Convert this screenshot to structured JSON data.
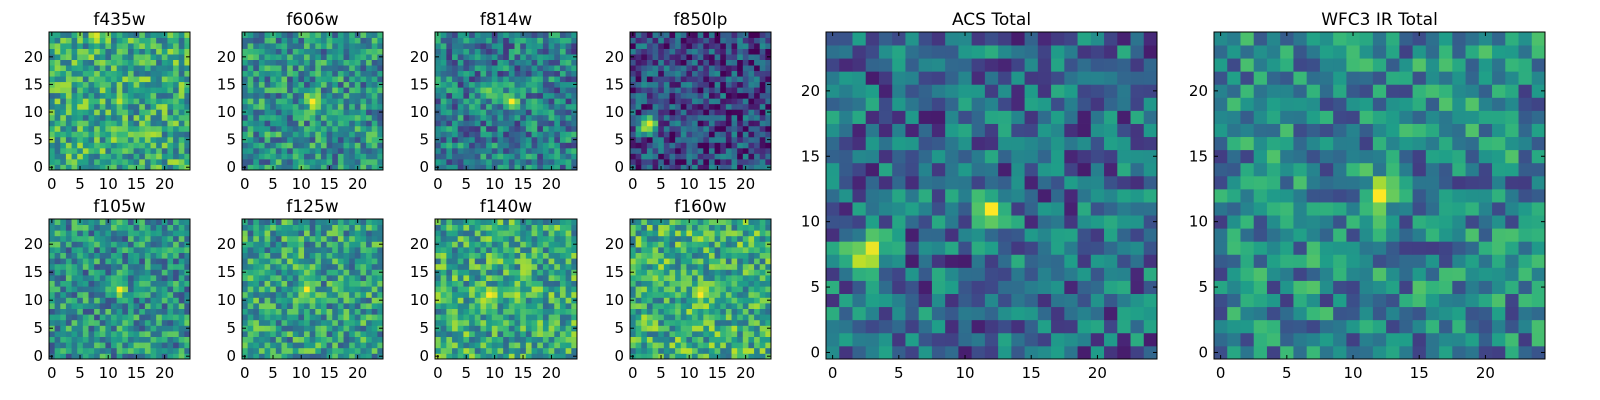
{
  "figure": {
    "colormap": "viridis",
    "colors": {
      "low": "#440154",
      "mid": "#21918c",
      "high": "#fde725",
      "axis": "#000000"
    }
  },
  "chart_data": [
    {
      "type": "heatmap",
      "title": "f435w",
      "grid_size": 25,
      "xlim": [
        -0.5,
        24.5
      ],
      "ylim": [
        -0.5,
        24.5
      ],
      "xticks": [
        0,
        5,
        10,
        15,
        20
      ],
      "yticks": [
        0,
        5,
        10,
        15,
        20
      ],
      "xlabel": "",
      "ylabel": "",
      "bright_spots": [
        {
          "x": 12,
          "y": 12,
          "level": 0.9
        },
        {
          "x": 8,
          "y": 24,
          "level": 0.95
        }
      ],
      "background_level": 0.6
    },
    {
      "type": "heatmap",
      "title": "f606w",
      "grid_size": 25,
      "xlim": [
        -0.5,
        24.5
      ],
      "ylim": [
        -0.5,
        24.5
      ],
      "xticks": [
        0,
        5,
        10,
        15,
        20
      ],
      "yticks": [
        0,
        5,
        10,
        15,
        20
      ],
      "xlabel": "",
      "ylabel": "",
      "bright_spots": [
        {
          "x": 12,
          "y": 12,
          "level": 1.0
        }
      ],
      "background_level": 0.5
    },
    {
      "type": "heatmap",
      "title": "f814w",
      "grid_size": 25,
      "xlim": [
        -0.5,
        24.5
      ],
      "ylim": [
        -0.5,
        24.5
      ],
      "xticks": [
        0,
        5,
        10,
        15,
        20
      ],
      "yticks": [
        0,
        5,
        10,
        15,
        20
      ],
      "xlabel": "",
      "ylabel": "",
      "bright_spots": [
        {
          "x": 13,
          "y": 12,
          "level": 1.0
        },
        {
          "x": 9,
          "y": 14,
          "level": 0.8
        }
      ],
      "background_level": 0.42
    },
    {
      "type": "heatmap",
      "title": "f850lp",
      "grid_size": 25,
      "xlim": [
        -0.5,
        24.5
      ],
      "ylim": [
        -0.5,
        24.5
      ],
      "xticks": [
        0,
        5,
        10,
        15,
        20
      ],
      "yticks": [
        0,
        5,
        10,
        15,
        20
      ],
      "xlabel": "",
      "ylabel": "",
      "bright_spots": [
        {
          "x": 3,
          "y": 8,
          "level": 1.0
        },
        {
          "x": 2,
          "y": 7,
          "level": 0.85
        }
      ],
      "background_level": 0.22
    },
    {
      "type": "heatmap",
      "title": "f105w",
      "grid_size": 25,
      "xlim": [
        -0.5,
        24.5
      ],
      "ylim": [
        -0.5,
        24.5
      ],
      "xticks": [
        0,
        5,
        10,
        15,
        20
      ],
      "yticks": [
        0,
        5,
        10,
        15,
        20
      ],
      "xlabel": "",
      "ylabel": "",
      "bright_spots": [
        {
          "x": 12,
          "y": 12,
          "level": 1.0
        }
      ],
      "background_level": 0.5
    },
    {
      "type": "heatmap",
      "title": "f125w",
      "grid_size": 25,
      "xlim": [
        -0.5,
        24.5
      ],
      "ylim": [
        -0.5,
        24.5
      ],
      "xticks": [
        0,
        5,
        10,
        15,
        20
      ],
      "yticks": [
        0,
        5,
        10,
        15,
        20
      ],
      "xlabel": "",
      "ylabel": "",
      "bright_spots": [
        {
          "x": 11,
          "y": 12,
          "level": 1.0
        },
        {
          "x": 11,
          "y": 15,
          "level": 0.8
        }
      ],
      "background_level": 0.55
    },
    {
      "type": "heatmap",
      "title": "f140w",
      "grid_size": 25,
      "xlim": [
        -0.5,
        24.5
      ],
      "ylim": [
        -0.5,
        24.5
      ],
      "xticks": [
        0,
        5,
        10,
        15,
        20
      ],
      "yticks": [
        0,
        5,
        10,
        15,
        20
      ],
      "xlabel": "",
      "ylabel": "",
      "bright_spots": [
        {
          "x": 9,
          "y": 11,
          "level": 1.0
        },
        {
          "x": 14,
          "y": 11,
          "level": 0.9
        },
        {
          "x": 3,
          "y": 6,
          "level": 0.85
        }
      ],
      "background_level": 0.6
    },
    {
      "type": "heatmap",
      "title": "f160w",
      "grid_size": 25,
      "xlim": [
        -0.5,
        24.5
      ],
      "ylim": [
        -0.5,
        24.5
      ],
      "xticks": [
        0,
        5,
        10,
        15,
        20
      ],
      "yticks": [
        0,
        5,
        10,
        15,
        20
      ],
      "xlabel": "",
      "ylabel": "",
      "bright_spots": [
        {
          "x": 12,
          "y": 11,
          "level": 1.0
        },
        {
          "x": 4,
          "y": 14,
          "level": 0.85
        }
      ],
      "background_level": 0.62
    },
    {
      "type": "heatmap",
      "title": "ACS Total",
      "grid_size": 25,
      "xlim": [
        -0.5,
        24.5
      ],
      "ylim": [
        -0.5,
        24.5
      ],
      "xticks": [
        0,
        5,
        10,
        15,
        20
      ],
      "yticks": [
        0,
        5,
        10,
        15,
        20
      ],
      "xlabel": "",
      "ylabel": "",
      "bright_spots": [
        {
          "x": 12,
          "y": 11,
          "level": 1.0
        },
        {
          "x": 3,
          "y": 8,
          "level": 1.0
        },
        {
          "x": 2,
          "y": 7,
          "level": 0.9
        }
      ],
      "background_level": 0.35
    },
    {
      "type": "heatmap",
      "title": "WFC3 IR Total",
      "grid_size": 25,
      "xlim": [
        -0.5,
        24.5
      ],
      "ylim": [
        -0.5,
        24.5
      ],
      "xticks": [
        0,
        5,
        10,
        15,
        20
      ],
      "yticks": [
        0,
        5,
        10,
        15,
        20
      ],
      "xlabel": "",
      "ylabel": "",
      "bright_spots": [
        {
          "x": 12,
          "y": 12,
          "level": 1.0
        },
        {
          "x": 5,
          "y": 10,
          "level": 0.65
        }
      ],
      "background_level": 0.45
    }
  ]
}
